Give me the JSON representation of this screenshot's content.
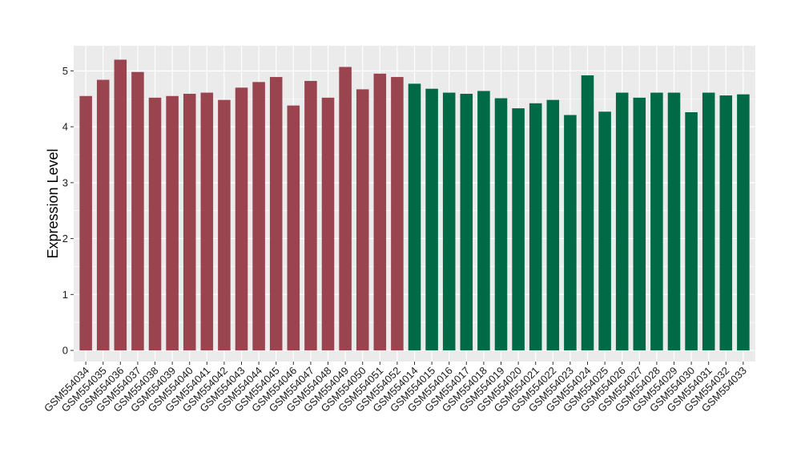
{
  "chart_data": {
    "type": "bar",
    "title": "",
    "xlabel": "",
    "ylabel": "Expression Level",
    "ylim": [
      -0.2,
      5.45
    ],
    "yticks": [
      0,
      1,
      2,
      3,
      4,
      5
    ],
    "grid": true,
    "legend": "none",
    "panel_background": "#ebebeb",
    "grid_color": "#ffffff",
    "categories": [
      "GSM554034",
      "GSM554035",
      "GSM554036",
      "GSM554037",
      "GSM554038",
      "GSM554039",
      "GSM554040",
      "GSM554041",
      "GSM554042",
      "GSM554043",
      "GSM554044",
      "GSM554045",
      "GSM554046",
      "GSM554047",
      "GSM554048",
      "GSM554049",
      "GSM554050",
      "GSM554051",
      "GSM554052",
      "GSM554014",
      "GSM554015",
      "GSM554016",
      "GSM554017",
      "GSM554018",
      "GSM554019",
      "GSM554020",
      "GSM554021",
      "GSM554022",
      "GSM554023",
      "GSM554024",
      "GSM554025",
      "GSM554026",
      "GSM554027",
      "GSM554028",
      "GSM554029",
      "GSM554030",
      "GSM554031",
      "GSM554032",
      "GSM554033"
    ],
    "values": [
      4.55,
      4.84,
      5.2,
      4.98,
      4.52,
      4.55,
      4.59,
      4.61,
      4.48,
      4.7,
      4.8,
      4.89,
      4.38,
      4.82,
      4.52,
      5.07,
      4.67,
      4.95,
      4.89,
      4.77,
      4.68,
      4.61,
      4.59,
      4.64,
      4.51,
      4.33,
      4.42,
      4.48,
      4.21,
      4.92,
      4.27,
      4.61,
      4.52,
      4.61,
      4.61,
      4.26,
      4.61,
      4.56,
      4.58
    ],
    "groups": [
      {
        "count": 19,
        "color": "#9a4450"
      },
      {
        "count": 20,
        "color": "#006a47"
      }
    ]
  }
}
